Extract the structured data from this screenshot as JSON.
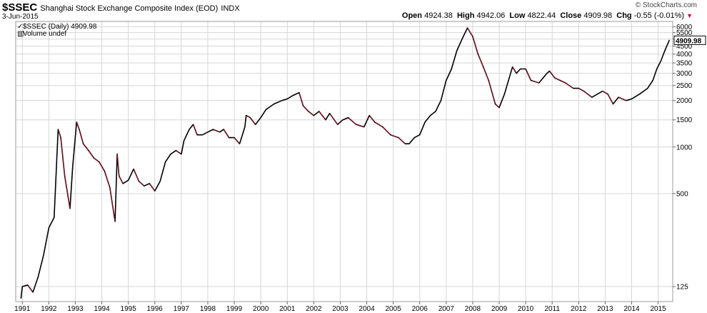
{
  "header": {
    "symbol": "$SSEC",
    "title": "Shanghai Stock Exchange Composite Index (EOD)",
    "exchange": "INDX",
    "date": "3-Jun-2015",
    "brand": "© StockCharts.com",
    "open_label": "Open",
    "open": "4924.38",
    "high_label": "High",
    "high": "4942.06",
    "low_label": "Low",
    "low": "4822.44",
    "close_label": "Close",
    "close": "4909.98",
    "chg_label": "Chg",
    "chg": "-0.55 (-0.01%)"
  },
  "legend": {
    "price": "$SSEC (Daily) 4909.98",
    "volume": "Volume undef"
  },
  "chart_data": {
    "type": "line",
    "title": "Shanghai Stock Exchange Composite Index (EOD)",
    "y_scale": "log",
    "ylim": [
      100,
      6500
    ],
    "y_ticks": [
      125,
      500,
      1000,
      1500,
      2000,
      2500,
      3000,
      3500,
      4000,
      4500,
      5000,
      5500,
      6000
    ],
    "x_ticks": [
      "1991",
      "1992",
      "1993",
      "1994",
      "1995",
      "1996",
      "1997",
      "1998",
      "1999",
      "2000",
      "2001",
      "2002",
      "2003",
      "2004",
      "2005",
      "2006",
      "2007",
      "2008",
      "2009",
      "2010",
      "2011",
      "2012",
      "2013",
      "2014",
      "2015"
    ],
    "last_value": "4909.98",
    "series": [
      {
        "name": "$SSEC (Daily)",
        "x": [
          1990.95,
          1991.0,
          1991.2,
          1991.4,
          1991.6,
          1991.8,
          1992.0,
          1992.2,
          1992.35,
          1992.45,
          1992.6,
          1992.8,
          1992.9,
          1993.05,
          1993.15,
          1993.3,
          1993.5,
          1993.7,
          1993.9,
          1994.1,
          1994.3,
          1994.5,
          1994.58,
          1994.65,
          1994.8,
          1995.0,
          1995.2,
          1995.4,
          1995.6,
          1995.8,
          1996.0,
          1996.2,
          1996.4,
          1996.6,
          1996.8,
          1997.0,
          1997.1,
          1997.3,
          1997.45,
          1997.6,
          1997.8,
          1998.0,
          1998.2,
          1998.45,
          1998.6,
          1998.8,
          1999.0,
          1999.2,
          1999.4,
          1999.45,
          1999.6,
          1999.8,
          2000.0,
          2000.2,
          2000.5,
          2000.8,
          2001.0,
          2001.2,
          2001.45,
          2001.6,
          2001.8,
          2002.0,
          2002.2,
          2002.45,
          2002.6,
          2002.9,
          2003.1,
          2003.3,
          2003.6,
          2003.9,
          2004.1,
          2004.3,
          2004.6,
          2004.9,
          2005.2,
          2005.45,
          2005.6,
          2005.8,
          2006.0,
          2006.2,
          2006.4,
          2006.6,
          2006.8,
          2007.0,
          2007.2,
          2007.4,
          2007.6,
          2007.8,
          2008.0,
          2008.2,
          2008.4,
          2008.6,
          2008.85,
          2009.0,
          2009.2,
          2009.5,
          2009.65,
          2009.8,
          2010.0,
          2010.2,
          2010.5,
          2010.8,
          2010.9,
          2011.1,
          2011.3,
          2011.5,
          2011.8,
          2012.0,
          2012.2,
          2012.5,
          2012.9,
          2013.1,
          2013.3,
          2013.5,
          2013.8,
          2014.0,
          2014.3,
          2014.6,
          2014.8,
          2014.95,
          2015.1,
          2015.25,
          2015.42
        ],
        "values": [
          105,
          125,
          128,
          115,
          145,
          200,
          300,
          350,
          1300,
          1150,
          650,
          400,
          750,
          1450,
          1300,
          1050,
          950,
          850,
          800,
          700,
          550,
          330,
          900,
          650,
          580,
          610,
          720,
          600,
          560,
          580,
          520,
          600,
          800,
          900,
          950,
          900,
          1100,
          1300,
          1400,
          1200,
          1200,
          1250,
          1300,
          1250,
          1300,
          1150,
          1150,
          1050,
          1350,
          1600,
          1550,
          1400,
          1550,
          1750,
          1900,
          2000,
          2050,
          2150,
          2250,
          1850,
          1700,
          1600,
          1700,
          1500,
          1650,
          1400,
          1500,
          1550,
          1400,
          1350,
          1600,
          1450,
          1350,
          1200,
          1150,
          1050,
          1050,
          1150,
          1200,
          1450,
          1600,
          1700,
          2000,
          2700,
          3200,
          4200,
          5000,
          5900,
          5200,
          4000,
          3300,
          2700,
          1900,
          1800,
          2200,
          3300,
          3000,
          3200,
          3200,
          2700,
          2600,
          3000,
          3100,
          2800,
          2700,
          2600,
          2400,
          2400,
          2300,
          2100,
          2300,
          2200,
          1900,
          2100,
          2000,
          2050,
          2200,
          2400,
          2700,
          3200,
          3600,
          4200,
          4909.98
        ]
      }
    ]
  },
  "colors": {
    "line": "#000000",
    "down": "#c8102e",
    "grid": "#d6d6d6",
    "frame": "#9a9a9a"
  }
}
